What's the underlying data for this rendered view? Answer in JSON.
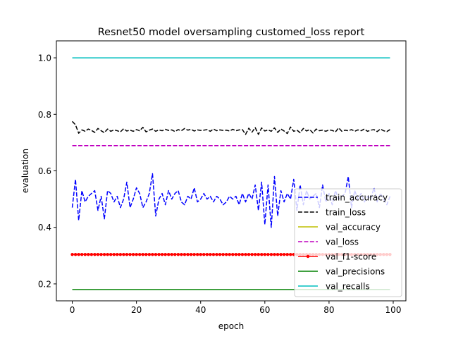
{
  "chart_data": {
    "type": "line",
    "title": "Resnet50 model oversampling customed_loss report",
    "xlabel": "epoch",
    "ylabel": "evaluation",
    "xlim": [
      -4.95,
      103.95
    ],
    "ylim": [
      0.14,
      1.06
    ],
    "xticks": [
      0,
      20,
      40,
      60,
      80,
      100
    ],
    "xtick_labels": [
      "0",
      "20",
      "40",
      "60",
      "80",
      "100"
    ],
    "yticks": [
      0.2,
      0.4,
      0.6,
      0.8,
      1.0
    ],
    "ytick_labels": [
      "0.2",
      "0.4",
      "0.6",
      "0.8",
      "1.0"
    ],
    "grid": false,
    "legend_position": "lower-right",
    "x": [
      0,
      1,
      2,
      3,
      4,
      5,
      6,
      7,
      8,
      9,
      10,
      11,
      12,
      13,
      14,
      15,
      16,
      17,
      18,
      19,
      20,
      21,
      22,
      23,
      24,
      25,
      26,
      27,
      28,
      29,
      30,
      31,
      32,
      33,
      34,
      35,
      36,
      37,
      38,
      39,
      40,
      41,
      42,
      43,
      44,
      45,
      46,
      47,
      48,
      49,
      50,
      51,
      52,
      53,
      54,
      55,
      56,
      57,
      58,
      59,
      60,
      61,
      62,
      63,
      64,
      65,
      66,
      67,
      68,
      69,
      70,
      71,
      72,
      73,
      74,
      75,
      76,
      77,
      78,
      79,
      80,
      81,
      82,
      83,
      84,
      85,
      86,
      87,
      88,
      89,
      90,
      91,
      92,
      93,
      94,
      95,
      96,
      97,
      98,
      99
    ],
    "series": [
      {
        "name": "train_accuracy",
        "color": "#0000ff",
        "style": "dashed",
        "values": [
          0.47,
          0.57,
          0.425,
          0.53,
          0.49,
          0.51,
          0.52,
          0.53,
          0.46,
          0.51,
          0.43,
          0.53,
          0.52,
          0.49,
          0.51,
          0.47,
          0.5,
          0.56,
          0.47,
          0.5,
          0.54,
          0.52,
          0.47,
          0.49,
          0.52,
          0.59,
          0.44,
          0.5,
          0.52,
          0.48,
          0.53,
          0.5,
          0.52,
          0.53,
          0.49,
          0.48,
          0.51,
          0.5,
          0.54,
          0.49,
          0.5,
          0.52,
          0.5,
          0.51,
          0.49,
          0.51,
          0.5,
          0.48,
          0.49,
          0.51,
          0.5,
          0.51,
          0.48,
          0.52,
          0.49,
          0.52,
          0.5,
          0.55,
          0.46,
          0.56,
          0.41,
          0.55,
          0.4,
          0.58,
          0.44,
          0.53,
          0.49,
          0.52,
          0.5,
          0.57,
          0.46,
          0.55,
          0.48,
          0.53,
          0.5,
          0.51,
          0.52,
          0.47,
          0.55,
          0.49,
          0.52,
          0.48,
          0.53,
          0.5,
          0.51,
          0.52,
          0.58,
          0.47,
          0.53,
          0.5,
          0.52,
          0.49,
          0.51,
          0.5,
          0.54,
          0.49,
          0.52,
          0.5,
          0.48,
          0.51
        ],
        "note_values_continue_beyond_visible": true
      },
      {
        "name": "train_loss",
        "color": "#000000",
        "style": "dashed",
        "values": [
          0.775,
          0.763,
          0.733,
          0.745,
          0.74,
          0.748,
          0.743,
          0.736,
          0.75,
          0.742,
          0.735,
          0.748,
          0.74,
          0.745,
          0.742,
          0.738,
          0.749,
          0.741,
          0.744,
          0.74,
          0.746,
          0.742,
          0.754,
          0.738,
          0.744,
          0.748,
          0.74,
          0.745,
          0.742,
          0.747,
          0.743,
          0.745,
          0.739,
          0.746,
          0.742,
          0.75,
          0.744,
          0.747,
          0.741,
          0.745,
          0.743,
          0.744,
          0.746,
          0.74,
          0.748,
          0.742,
          0.745,
          0.743,
          0.744,
          0.741,
          0.747,
          0.742,
          0.745,
          0.746,
          0.729,
          0.751,
          0.737,
          0.753,
          0.729,
          0.752,
          0.741,
          0.745,
          0.74,
          0.752,
          0.736,
          0.748,
          0.741,
          0.732,
          0.755,
          0.74,
          0.744,
          0.735,
          0.75,
          0.741,
          0.746,
          0.734,
          0.748,
          0.742,
          0.744,
          0.74,
          0.745,
          0.743,
          0.738,
          0.752,
          0.74,
          0.744,
          0.742,
          0.746,
          0.74,
          0.745,
          0.742,
          0.748,
          0.74,
          0.744,
          0.746,
          0.739,
          0.748,
          0.742,
          0.739,
          0.746
        ]
      },
      {
        "name": "val_accuracy",
        "color": "#bfbf00",
        "style": "solid",
        "constant": 0.305
      },
      {
        "name": "val_loss",
        "color": "#bf00bf",
        "style": "dashed",
        "constant": 0.689
      },
      {
        "name": "val_f1-score",
        "color": "#ff0000",
        "style": "solid-dot",
        "constant": 0.304
      },
      {
        "name": "val_precisions",
        "color": "#008000",
        "style": "solid",
        "constant": 0.18
      },
      {
        "name": "val_recalls",
        "color": "#00bfbf",
        "style": "solid",
        "constant": 1.0
      }
    ]
  }
}
